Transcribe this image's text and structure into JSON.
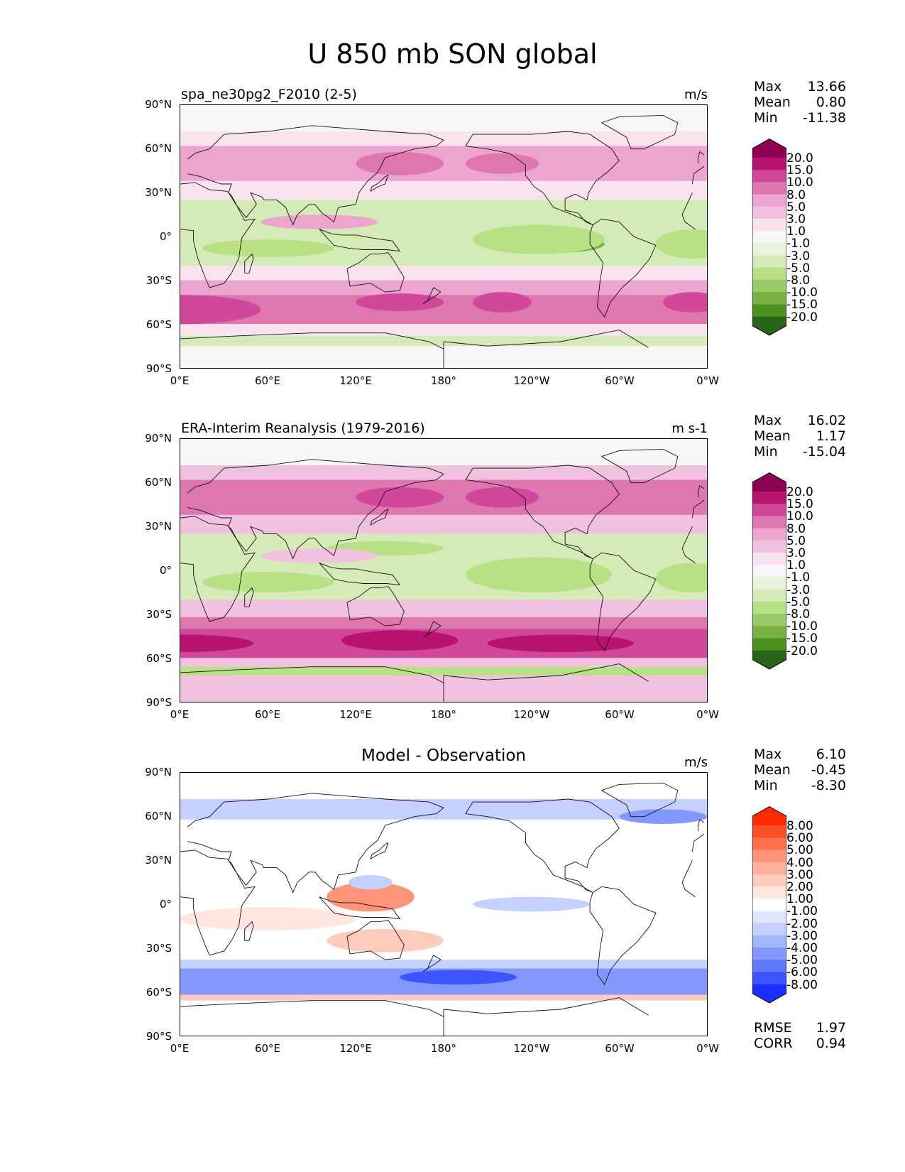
{
  "figure": {
    "title": "U 850 mb SON global"
  },
  "axes": {
    "lat_labels": [
      "90°N",
      "60°N",
      "30°N",
      "0°",
      "30°S",
      "60°S",
      "90°S"
    ],
    "lon_labels": [
      "0°E",
      "60°E",
      "120°E",
      "180°",
      "120°W",
      "60°W",
      "0°W"
    ]
  },
  "panels": [
    {
      "title": "spa_ne30pg2_F2010 (2-5)",
      "units": "m/s",
      "stats": {
        "max_label": "Max",
        "max": "13.66",
        "mean_label": "Mean",
        "mean": "0.80",
        "min_label": "Min",
        "min": "-11.38"
      },
      "colorbar": {
        "labels": [
          "20.0",
          "15.0",
          "10.0",
          "8.0",
          "5.0",
          "3.0",
          "1.0",
          "-1.0",
          "-3.0",
          "-5.0",
          "-8.0",
          "-10.0",
          "-15.0",
          "-20.0"
        ],
        "colors": [
          "#8e0152",
          "#b8136f",
          "#d0479c",
          "#de77ae",
          "#eba5cf",
          "#f1c2e0",
          "#f9e3ef",
          "#f7f7f7",
          "#eaf4dc",
          "#d4ebb8",
          "#b8e186",
          "#98c96a",
          "#78b043",
          "#4d9221",
          "#276419"
        ]
      },
      "field": "model",
      "field_colors": {
        "hi3": "#d0479c",
        "hi2": "#de77ae",
        "hi1": "#eba5cf",
        "hi0": "#f9e3ef",
        "lo1": "#d4ebb8",
        "lo2": "#b8e186",
        "lo3": "#78b043"
      }
    },
    {
      "title": "ERA-Interim Reanalysis (1979-2016)",
      "units": "m s-1",
      "stats": {
        "max_label": "Max",
        "max": "16.02",
        "mean_label": "Mean",
        "mean": "1.17",
        "min_label": "Min",
        "min": "-15.04"
      },
      "colorbar": {
        "labels": [
          "20.0",
          "15.0",
          "10.0",
          "8.0",
          "5.0",
          "3.0",
          "1.0",
          "-1.0",
          "-3.0",
          "-5.0",
          "-8.0",
          "-10.0",
          "-15.0",
          "-20.0"
        ],
        "colors": [
          "#8e0152",
          "#b8136f",
          "#d0479c",
          "#de77ae",
          "#eba5cf",
          "#f1c2e0",
          "#f9e3ef",
          "#f7f7f7",
          "#eaf4dc",
          "#d4ebb8",
          "#b8e186",
          "#98c96a",
          "#78b043",
          "#4d9221",
          "#276419"
        ]
      },
      "field": "obs",
      "field_colors": {
        "hi3": "#b8136f",
        "hi2": "#d0479c",
        "hi1": "#de77ae",
        "hi0": "#f1c2e0",
        "lo1": "#d4ebb8",
        "lo2": "#b8e186",
        "lo3": "#78b043"
      }
    },
    {
      "title": "Model - Observation",
      "units": "m/s",
      "stats": {
        "max_label": "Max",
        "max": "6.10",
        "mean_label": "Mean",
        "mean": "-0.45",
        "min_label": "Min",
        "min": "-8.30"
      },
      "colorbar": {
        "labels": [
          "8.00",
          "6.00",
          "5.00",
          "4.00",
          "3.00",
          "2.00",
          "1.00",
          "-1.00",
          "-2.00",
          "-3.00",
          "-4.00",
          "-5.00",
          "-6.00",
          "-8.00"
        ],
        "colors": [
          "#ff2a00",
          "#ff4d26",
          "#ff7050",
          "#ff9478",
          "#ffb09a",
          "#ffcbbd",
          "#ffe6de",
          "#ffffff",
          "#dfe6ff",
          "#c4d0ff",
          "#a3b5ff",
          "#8298ff",
          "#5f78ff",
          "#3d55ff",
          "#1a2eff"
        ]
      },
      "field": "diff",
      "field_colors": {
        "hi3": "#ff7050",
        "hi2": "#ff9478",
        "hi1": "#ffcbbd",
        "hi0": "#ffe6de",
        "lo1": "#c4d0ff",
        "lo2": "#8298ff",
        "lo3": "#3d55ff"
      },
      "error": {
        "rmse_label": "RMSE",
        "rmse": "1.97",
        "corr_label": "CORR",
        "corr": "0.94"
      }
    }
  ]
}
